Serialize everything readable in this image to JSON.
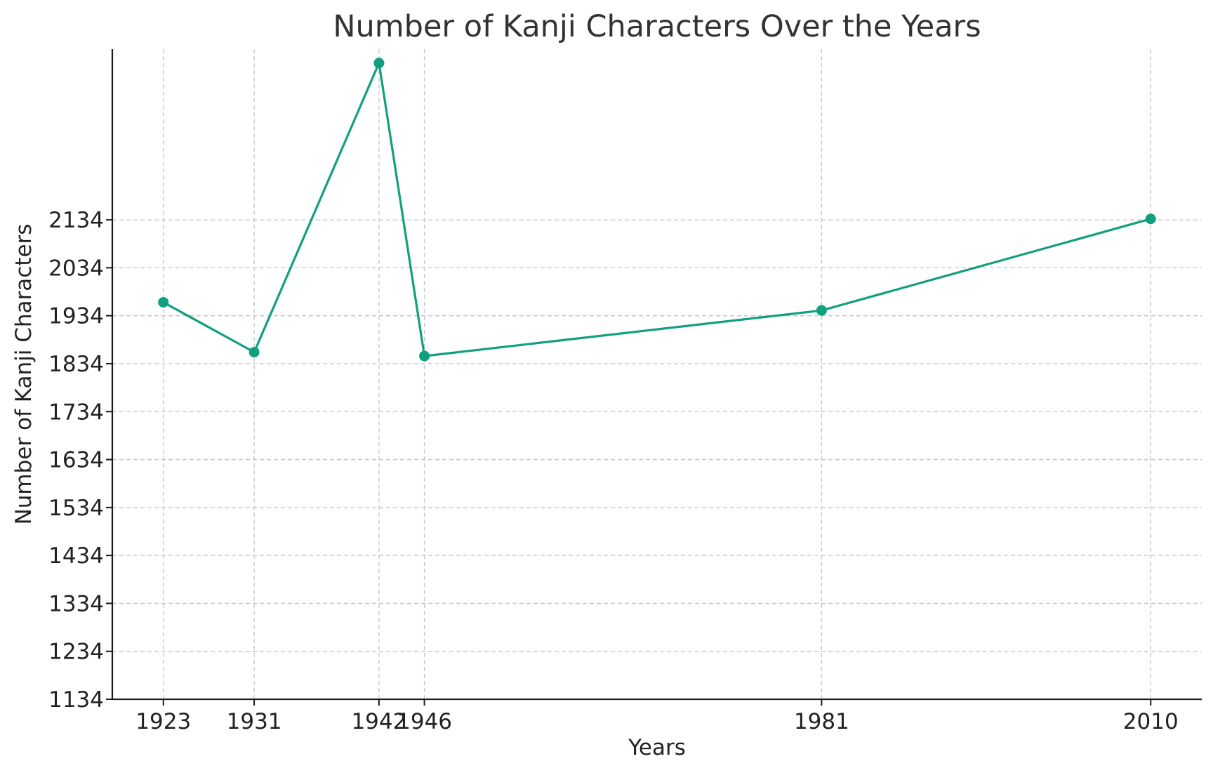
{
  "chart_data": {
    "type": "line",
    "title": "Number of Kanji Characters Over the Years",
    "xlabel": "Years",
    "ylabel": "Number of Kanji Characters",
    "x": [
      1923,
      1931,
      1942,
      1946,
      1981,
      2010
    ],
    "x_tick_labels": [
      "1923",
      "1931",
      "1942",
      "1946",
      "1981",
      "2010"
    ],
    "y_ticks": [
      1134,
      1234,
      1334,
      1434,
      1534,
      1634,
      1734,
      1834,
      1934,
      2034,
      2134
    ],
    "y_tick_labels": [
      "1134",
      "1234",
      "1334",
      "1434",
      "1534",
      "1634",
      "1734",
      "1834",
      "1934",
      "2034",
      "2134"
    ],
    "xlim": [
      1918.5,
      2014.5
    ],
    "ylim": [
      1134,
      2490
    ],
    "series": [
      {
        "values": [
          1962,
          1858,
          2461,
          1850,
          1945,
          2136
        ],
        "color": "#11a07e"
      }
    ],
    "grid": true,
    "marker": "circle"
  }
}
